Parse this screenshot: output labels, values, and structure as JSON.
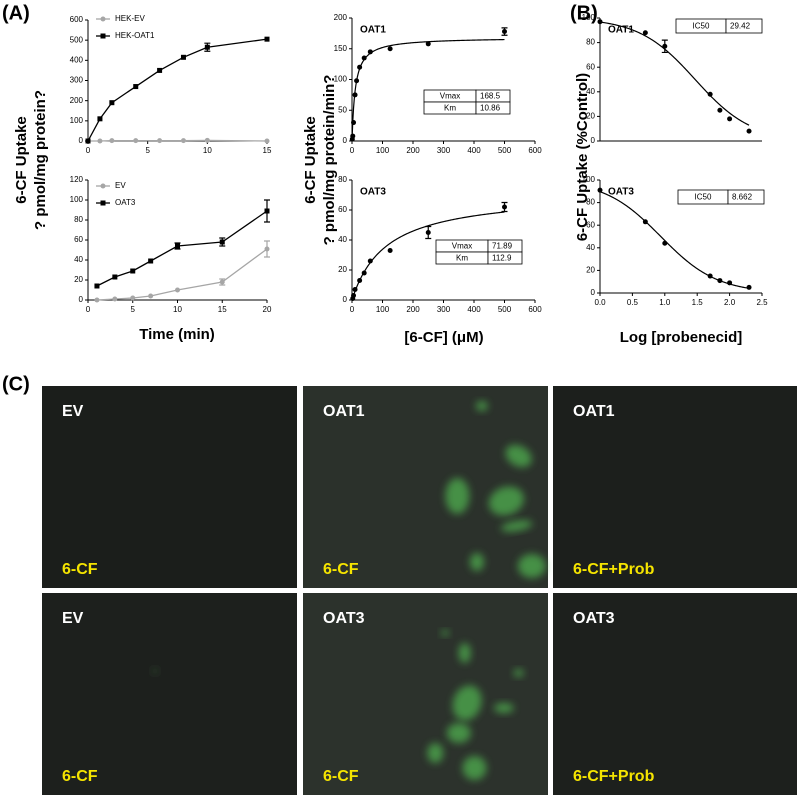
{
  "panel_labels": [
    "(A)",
    "(B)",
    "(C)"
  ],
  "chart_data": [
    {
      "type": "line",
      "x": [
        0,
        1,
        2,
        4,
        6,
        8,
        10,
        15
      ],
      "xlim": [
        0,
        15
      ],
      "xticks": [
        0,
        5,
        10,
        15
      ],
      "ylim": [
        0,
        600
      ],
      "yticks": [
        0,
        100,
        200,
        300,
        400,
        500,
        600
      ],
      "ylabel": [
        "6-CF Uptake",
        "? pmol/mg protein?"
      ],
      "series": [
        {
          "name": "HEK-EV",
          "color": "#a6a6a6",
          "marker": "circle",
          "values": [
            0,
            0,
            2,
            2,
            2,
            2,
            3,
            0
          ]
        },
        {
          "name": "HEK-OAT1",
          "color": "#000000",
          "marker": "square",
          "values": [
            0,
            110,
            190,
            270,
            350,
            415,
            465,
            505
          ],
          "errors": [
            null,
            null,
            null,
            null,
            null,
            null,
            20,
            null
          ]
        }
      ]
    },
    {
      "type": "line",
      "x": [
        1,
        3,
        5,
        7,
        10,
        15,
        20
      ],
      "xlim": [
        0,
        20
      ],
      "xticks": [
        0,
        5,
        10,
        15,
        20
      ],
      "ylim": [
        0,
        120
      ],
      "yticks": [
        0,
        20,
        40,
        60,
        80,
        100,
        120
      ],
      "xlabel": "Time (min)",
      "series": [
        {
          "name": "EV",
          "color": "#a6a6a6",
          "marker": "circle",
          "values": [
            0,
            1,
            2,
            4,
            10,
            18,
            51
          ],
          "errors": [
            null,
            null,
            null,
            null,
            null,
            3,
            8
          ]
        },
        {
          "name": "OAT3",
          "color": "#000000",
          "marker": "square",
          "values": [
            14,
            23,
            29,
            39,
            54,
            58,
            89
          ],
          "errors": [
            null,
            null,
            null,
            null,
            3,
            4,
            11
          ]
        }
      ]
    },
    {
      "type": "scatter",
      "title": "OAT1",
      "fit_model": "michaelis-menten",
      "x": [
        1,
        2.5,
        5,
        10,
        15,
        25,
        40,
        60,
        125,
        250,
        500
      ],
      "values": [
        3,
        8,
        30,
        75,
        98,
        120,
        135,
        145,
        150,
        158,
        178
      ],
      "errors": [
        null,
        null,
        null,
        null,
        null,
        null,
        null,
        null,
        null,
        null,
        6
      ],
      "xlim": [
        0,
        600
      ],
      "xticks": [
        0,
        100,
        200,
        300,
        400,
        500,
        600
      ],
      "ylim": [
        0,
        200
      ],
      "yticks": [
        0,
        50,
        100,
        150,
        200
      ],
      "ylabel": [
        "6-CF Uptake",
        "? pmol/mg protein/min?"
      ],
      "fit_table": [
        {
          "label": "Vmax",
          "value": 168.5
        },
        {
          "label": "Km",
          "value": 10.86
        }
      ]
    },
    {
      "type": "scatter",
      "title": "OAT3",
      "fit_model": "michaelis-menten",
      "x": [
        2.5,
        5,
        10,
        25,
        40,
        60,
        125,
        250,
        500
      ],
      "values": [
        1,
        3,
        7,
        13,
        18,
        26,
        33,
        45,
        62
      ],
      "errors": [
        null,
        null,
        null,
        null,
        null,
        null,
        null,
        4,
        3
      ],
      "xlim": [
        0,
        600
      ],
      "xticks": [
        0,
        100,
        200,
        300,
        400,
        500,
        600
      ],
      "ylim": [
        0,
        80
      ],
      "yticks": [
        0,
        20,
        40,
        60,
        80
      ],
      "xlabel": "[6-CF] (μM)",
      "fit_table": [
        {
          "label": "Vmax",
          "value": 71.89
        },
        {
          "label": "Km",
          "value": 112.9
        }
      ]
    },
    {
      "type": "scatter",
      "title": "OAT1",
      "fit_model": "sigmoid",
      "x": [
        0,
        0.7,
        1.0,
        1.7,
        1.85,
        2.0,
        2.3
      ],
      "values": [
        97,
        88,
        77,
        38,
        25,
        18,
        8
      ],
      "errors": [
        null,
        null,
        5,
        null,
        null,
        null,
        null
      ],
      "xlim": [
        0,
        2.5
      ],
      "ylim": [
        0,
        100
      ],
      "yticks": [
        0,
        20,
        40,
        60,
        80,
        100
      ],
      "ylabel": [
        "6-CF Uptake (%Control)"
      ],
      "fit_table": [
        {
          "label": "IC50",
          "value": 29.42
        }
      ]
    },
    {
      "type": "scatter",
      "title": "OAT3",
      "fit_model": "sigmoid",
      "x": [
        0,
        0.7,
        1.0,
        1.7,
        1.85,
        2.0,
        2.3
      ],
      "values": [
        91,
        63,
        44,
        15,
        11,
        9,
        5
      ],
      "xlim": [
        0,
        2.5
      ],
      "xticks": [
        {
          "value": 0,
          "label": "0.0"
        },
        0.5,
        {
          "value": 1,
          "label": "1.0"
        },
        1.5,
        {
          "value": 2,
          "label": "2.0"
        },
        2.5
      ],
      "ylim": [
        0,
        100
      ],
      "yticks": [
        0,
        20,
        40,
        60,
        80,
        100
      ],
      "xlabel": "Log [probenecid]",
      "fit_table": [
        {
          "label": "IC50",
          "value": 8.662
        }
      ]
    }
  ],
  "images": [
    {
      "top": "EV",
      "bottom": "6-CF"
    },
    {
      "top": "OAT1",
      "bottom": "6-CF"
    },
    {
      "top": "OAT1",
      "bottom": "6-CF+Prob"
    },
    {
      "top": "EV",
      "bottom": "6-CF"
    },
    {
      "top": "OAT3",
      "bottom": "6-CF"
    },
    {
      "top": "OAT3",
      "bottom": "6-CF+Prob"
    }
  ]
}
